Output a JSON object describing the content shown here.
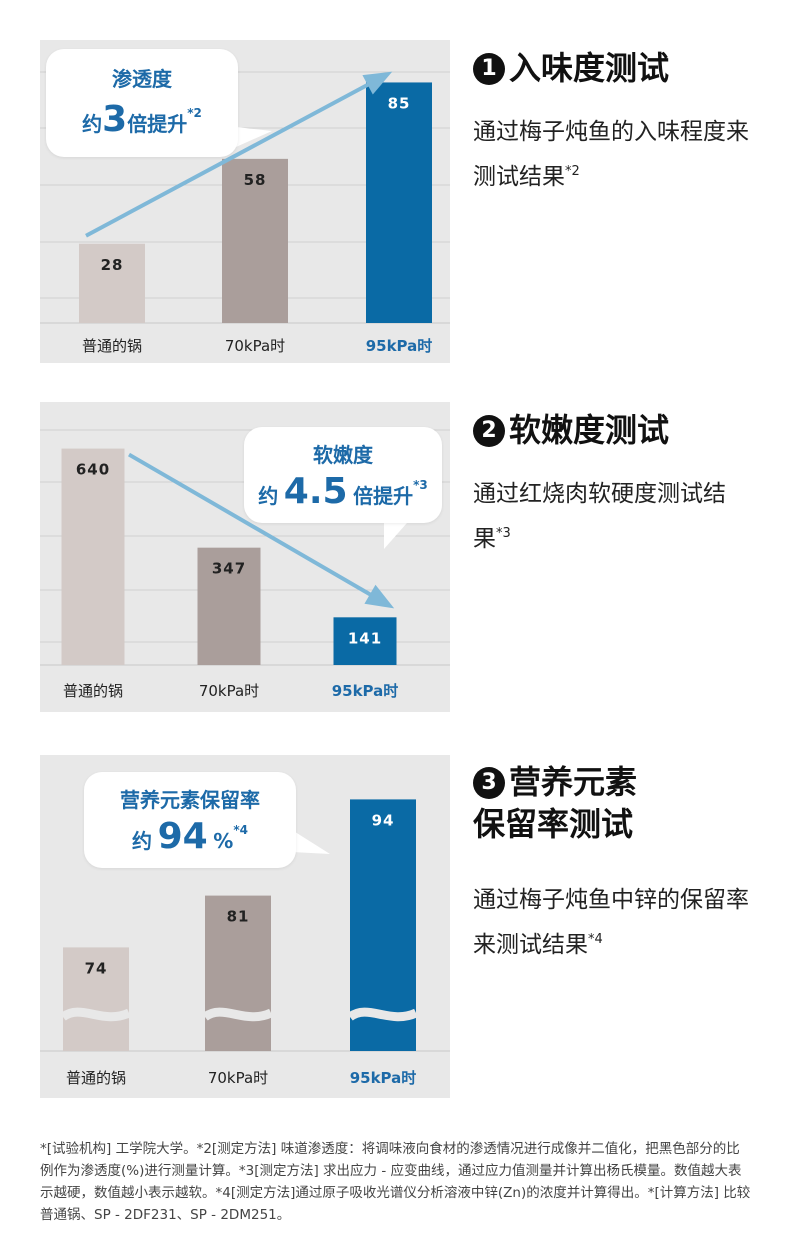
{
  "sections": [
    {
      "number": "1",
      "title_lines": [
        "入味度测试"
      ],
      "desc": "通过梅子炖鱼的入味程度来测试结果",
      "desc_sup": "*2",
      "callout": {
        "label": "渗透度",
        "prefix": "约",
        "value": "3",
        "suffix": "倍提升",
        "sup": "*2"
      },
      "chart_data": {
        "type": "bar",
        "categories": [
          "普通的锅",
          "70kPa时",
          "95kPa时"
        ],
        "values": [
          28,
          58,
          85
        ],
        "value_labels": [
          "28",
          "58",
          "85"
        ],
        "ylim": [
          0,
          100
        ],
        "grid": true,
        "colors": [
          "#d3cac7",
          "#aa9e9b",
          "#0a6aa5"
        ],
        "highlight_label_color": "#1d6aa8",
        "trend_arrow": "up"
      }
    },
    {
      "number": "2",
      "title_lines": [
        "软嫩度测试"
      ],
      "desc": "通过红烧肉软硬度测试结果",
      "desc_sup": "*3",
      "callout": {
        "label": "软嫩度",
        "prefix": "约",
        "value": "4.5",
        "suffix": "倍提升",
        "sup": "*3"
      },
      "chart_data": {
        "type": "bar",
        "categories": [
          "普通的锅",
          "70kPa时",
          "95kPa时"
        ],
        "values": [
          640,
          347,
          141
        ],
        "value_labels": [
          "640",
          "347",
          "141"
        ],
        "ylim": [
          0,
          760
        ],
        "grid": true,
        "colors": [
          "#d3cac7",
          "#aa9e9b",
          "#0a6aa5"
        ],
        "highlight_label_color": "#1d6aa8",
        "trend_arrow": "down"
      }
    },
    {
      "number": "3",
      "title_lines": [
        "营养元素",
        "保留率测试"
      ],
      "desc": "通过梅子炖鱼中锌的保留率来测试结果",
      "desc_sup": "*4",
      "callout": {
        "label": "营养元素保留率",
        "prefix": "约",
        "value": "94",
        "suffix": "%",
        "sup": "*4"
      },
      "chart_data": {
        "type": "bar",
        "categories": [
          "普通的锅",
          "70kPa时",
          "95kPa时"
        ],
        "values": [
          74,
          81,
          94
        ],
        "value_labels": [
          "74",
          "81",
          "94"
        ],
        "ylim": [
          60,
          100
        ],
        "axis_break": true,
        "grid": false,
        "colors": [
          "#d3cac7",
          "#aa9e9b",
          "#0a6aa5"
        ],
        "highlight_label_color": "#1d6aa8"
      }
    }
  ],
  "footnote": "*[试验机构] 工学院大学。*2[测定方法] 味道渗透度：将调味液向食材的渗透情况进行成像并二值化，把黑色部分的比例作为渗透度(%)进行测量计算。*3[测定方法] 求出应力 - 应变曲线，通过应力值测量并计算出杨氏模量。数值越大表示越硬，数值越小表示越软。*4[测定方法]通过原子吸收光谱仪分析溶液中锌(Zn)的浓度并计算得出。*[计算方法] 比较普通锅、SP - 2DF231、SP - 2DM251。"
}
